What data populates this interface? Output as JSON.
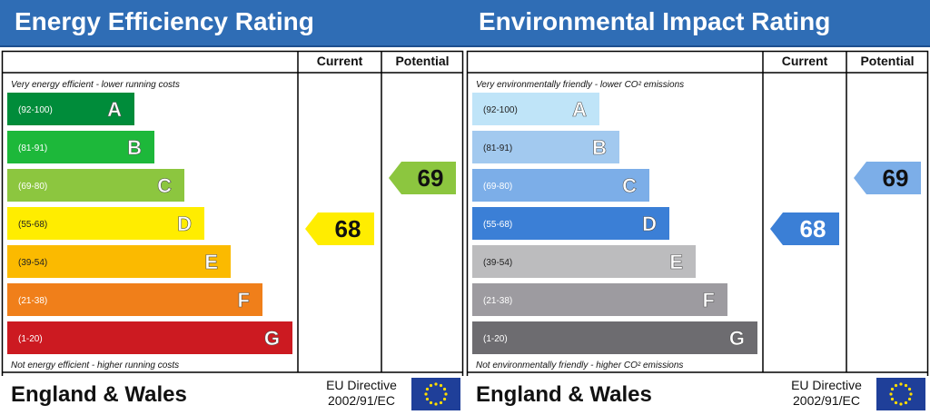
{
  "charts": [
    {
      "key": "energy",
      "title": "Energy Efficiency Rating",
      "top_note": "Very energy efficient - lower running costs",
      "bottom_note": "Not energy efficient - higher running costs",
      "country": "England & Wales",
      "directive_line1": "EU Directive",
      "directive_line2": "2002/91/EC",
      "columns": [
        "Current",
        "Potential"
      ]
    },
    {
      "key": "environmental",
      "title": "Environmental Impact Rating",
      "top_note": "Very environmentally friendly - lower CO² emissions",
      "bottom_note": "Not environmentally friendly - higher CO² emissions",
      "country": "England & Wales",
      "directive_line1": "EU Directive",
      "directive_line2": "2002/91/EC",
      "columns": [
        "Current",
        "Potential"
      ]
    }
  ],
  "chart_data": [
    {
      "type": "bar",
      "title": "Energy Efficiency Rating",
      "categories": [
        "A",
        "B",
        "C",
        "D",
        "E",
        "F",
        "G"
      ],
      "ranges": [
        "(92-100)",
        "(81-91)",
        "(69-80)",
        "(55-68)",
        "(39-54)",
        "(21-38)",
        "(1-20)"
      ],
      "colors": [
        "#008c3a",
        "#1db83a",
        "#8cc63f",
        "#ffed00",
        "#fbba00",
        "#f07f1a",
        "#cc1a21"
      ],
      "label_colors": [
        "#ffffff",
        "#ffffff",
        "#ffffff",
        "#ffffff",
        "#ffffff",
        "#ffffff",
        "#ffffff"
      ],
      "range_colors": [
        "#ffffff",
        "#ffffff",
        "#ffffff",
        "#222222",
        "#222222",
        "#ffffff",
        "#ffffff"
      ],
      "current": {
        "value": 68,
        "band": "D",
        "color": "#ffed00",
        "text_color": "#111111"
      },
      "potential": {
        "value": 69,
        "band": "C",
        "color": "#8cc63f",
        "text_color": "#111111"
      }
    },
    {
      "type": "bar",
      "title": "Environmental Impact Rating",
      "categories": [
        "A",
        "B",
        "C",
        "D",
        "E",
        "F",
        "G"
      ],
      "ranges": [
        "(92-100)",
        "(81-91)",
        "(69-80)",
        "(55-68)",
        "(39-54)",
        "(21-38)",
        "(1-20)"
      ],
      "colors": [
        "#bfe4f8",
        "#a2c9ef",
        "#7caee8",
        "#3b7fd6",
        "#bcbcbe",
        "#9d9ba0",
        "#6d6c70"
      ],
      "label_colors": [
        "#ffffff",
        "#ffffff",
        "#ffffff",
        "#ffffff",
        "#ffffff",
        "#ffffff",
        "#ffffff"
      ],
      "range_colors": [
        "#222222",
        "#222222",
        "#ffffff",
        "#ffffff",
        "#222222",
        "#ffffff",
        "#ffffff"
      ],
      "current": {
        "value": 68,
        "band": "D",
        "color": "#3b7fd6",
        "text_color": "#ffffff"
      },
      "potential": {
        "value": 69,
        "band": "C",
        "color": "#7caee8",
        "text_color": "#111111"
      }
    }
  ]
}
